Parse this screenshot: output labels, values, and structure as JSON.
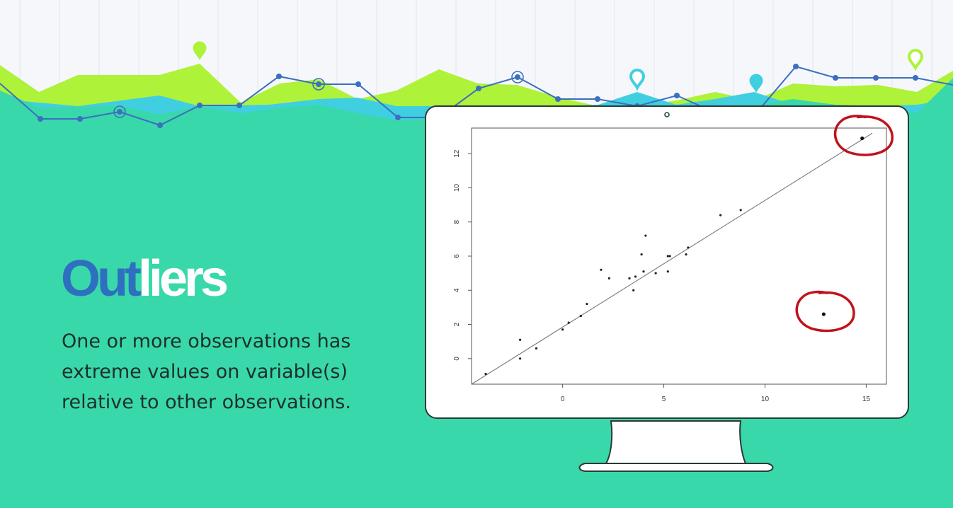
{
  "slide": {
    "title_part1": "Out",
    "title_part2": "liers",
    "body": "One or more observations has extreme values on variable(s) relative to other observations."
  },
  "colors": {
    "background": "#38d8aa",
    "sky": "#f6f7fb",
    "lime": "#aef23a",
    "cyan": "#40cfe0",
    "line": "#3b6fc0",
    "title_accent": "#2f6fbf",
    "circle_annotation": "#c0121c"
  },
  "chart_data": {
    "type": "scatter",
    "xlim": [
      -4.5,
      16
    ],
    "ylim": [
      -1.5,
      13.5
    ],
    "xticks": [
      "0",
      "5",
      "10",
      "15"
    ],
    "yticks": [
      "0",
      "2",
      "4",
      "6",
      "8",
      "10",
      "12"
    ],
    "x_tick_values": [
      0,
      5,
      10,
      15
    ],
    "y_tick_values": [
      0,
      2,
      4,
      6,
      8,
      10,
      12
    ],
    "points": [
      [
        -3.8,
        -0.9
      ],
      [
        -2.1,
        0.0
      ],
      [
        -2.1,
        1.1
      ],
      [
        -1.3,
        0.6
      ],
      [
        0.0,
        1.7
      ],
      [
        0.3,
        2.1
      ],
      [
        0.9,
        2.5
      ],
      [
        1.2,
        3.2
      ],
      [
        1.9,
        5.2
      ],
      [
        2.3,
        4.7
      ],
      [
        3.3,
        4.7
      ],
      [
        3.5,
        4.0
      ],
      [
        3.6,
        4.8
      ],
      [
        3.9,
        6.1
      ],
      [
        4.0,
        5.1
      ],
      [
        4.1,
        7.2
      ],
      [
        4.6,
        5.0
      ],
      [
        5.2,
        6.0
      ],
      [
        5.3,
        6.0
      ],
      [
        5.2,
        5.1
      ],
      [
        6.1,
        6.1
      ],
      [
        6.2,
        6.5
      ],
      [
        7.8,
        8.4
      ],
      [
        8.8,
        8.7
      ]
    ],
    "outliers": [
      [
        14.8,
        12.9
      ],
      [
        12.9,
        2.6
      ]
    ],
    "fit_line": [
      [
        -4.5,
        -1.5
      ],
      [
        15.3,
        13.2
      ]
    ],
    "xlabel": "",
    "ylabel": "",
    "title": "",
    "grid": false
  }
}
